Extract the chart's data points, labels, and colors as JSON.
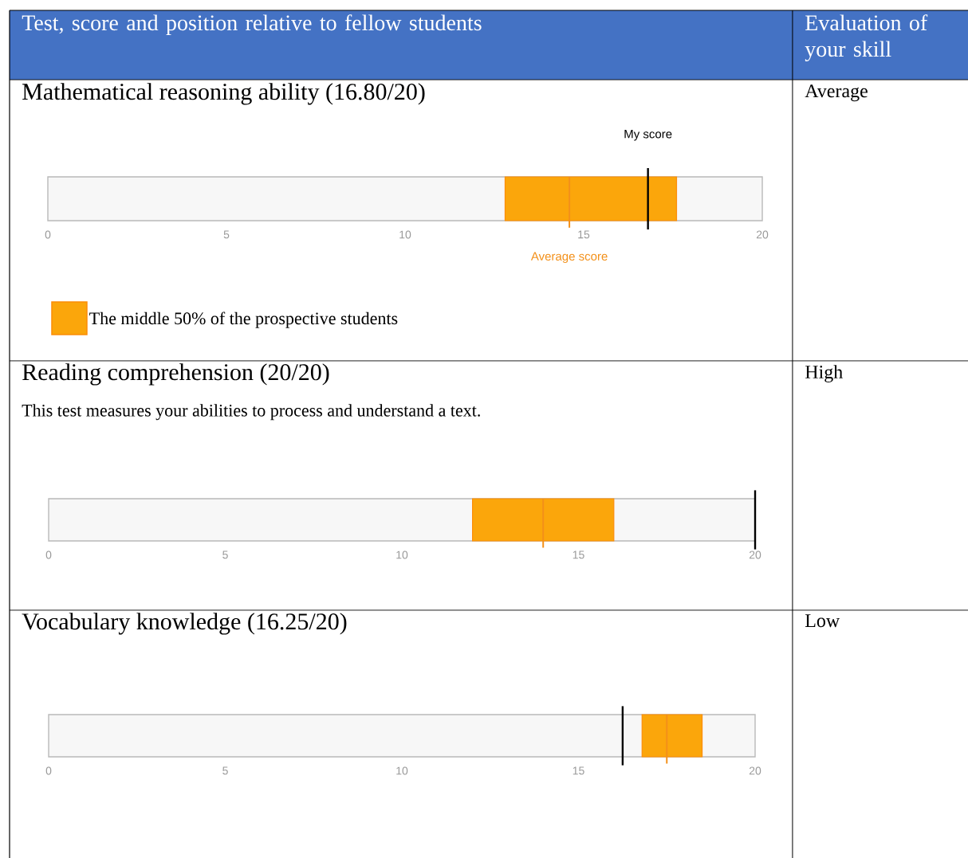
{
  "chart_data": [
    {
      "type": "bar",
      "orientation": "horizontal",
      "title": "Mathematical reasoning ability (16.80/20)",
      "categories": [
        null
      ],
      "xlim": [
        0,
        20
      ],
      "xticks": [
        {
          "value": 0,
          "label": "0"
        },
        {
          "value": 5,
          "label": "5"
        },
        {
          "value": 10,
          "label": "10"
        },
        {
          "value": 15,
          "label": "15"
        },
        {
          "value": 20,
          "label": "20"
        }
      ],
      "legend": "bottom left",
      "series": [
        {
          "name": "The middle 50% of the prospective students",
          "color": "#fba60b",
          "base": [
            12.8
          ],
          "values": [
            4.8
          ]
        }
      ],
      "ref_lines": [
        {
          "axis": "x",
          "value": 14.6,
          "label": "Average score",
          "color": "#f39019"
        },
        {
          "axis": "x",
          "value": 16.8,
          "label": "My score",
          "color": "#000000"
        }
      ],
      "annotations": [
        "Test, score and position relative to fellow students",
        "Evaluation of your skill",
        "Average"
      ]
    },
    {
      "type": "bar",
      "orientation": "horizontal",
      "title": "Reading comprehension (20/20)",
      "subtitle": "This test measures your abilities to process and understand a text.",
      "categories": [
        null
      ],
      "xlim": [
        0,
        20
      ],
      "xticks": [
        {
          "value": 0,
          "label": "0"
        },
        {
          "value": 5,
          "label": "5"
        },
        {
          "value": 10,
          "label": "10"
        },
        {
          "value": 15,
          "label": "15"
        },
        {
          "value": 20,
          "label": "20"
        }
      ],
      "series": [
        {
          "color": "#fba60b",
          "base": [
            12
          ],
          "values": [
            4
          ]
        }
      ],
      "ref_lines": [
        {
          "axis": "x",
          "value": 14,
          "color": "#f39019"
        },
        {
          "axis": "x",
          "value": 20,
          "color": "#000000"
        }
      ],
      "annotations": [
        "High"
      ]
    },
    {
      "type": "bar",
      "orientation": "horizontal",
      "title": "Vocabulary knowledge (16.25/20)",
      "categories": [
        null
      ],
      "xlim": [
        0,
        20
      ],
      "xticks": [
        {
          "value": 0,
          "label": "0"
        },
        {
          "value": 5,
          "label": "5"
        },
        {
          "value": 10,
          "label": "10"
        },
        {
          "value": 15,
          "label": "15"
        },
        {
          "value": 20,
          "label": "20"
        }
      ],
      "series": [
        {
          "color": "#fba60b",
          "base": [
            16.8
          ],
          "values": [
            1.7
          ]
        }
      ],
      "ref_lines": [
        {
          "axis": "x",
          "value": 17.5,
          "color": "#f39019"
        },
        {
          "axis": "x",
          "value": 16.25,
          "color": "#000000"
        }
      ],
      "annotations": [
        "Low"
      ]
    }
  ]
}
